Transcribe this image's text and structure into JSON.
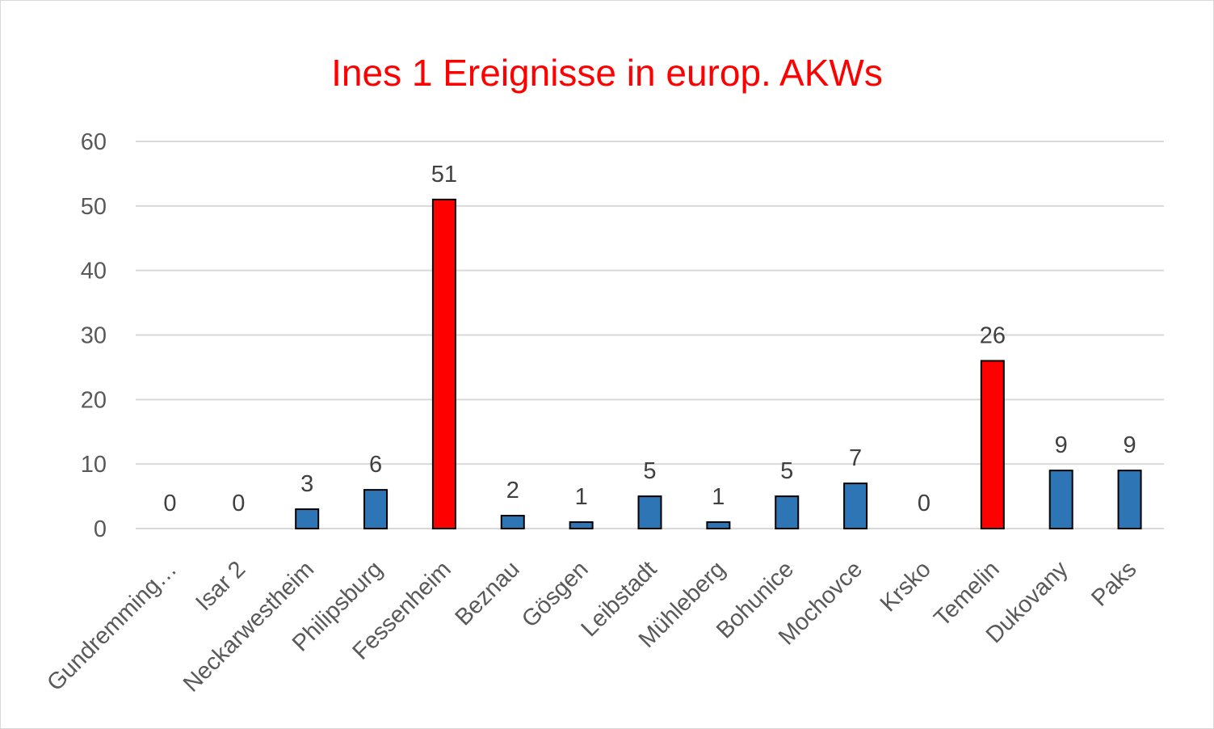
{
  "chart_data": {
    "type": "bar",
    "title": "Ines 1 Ereignisse in europ. AKWs",
    "xlabel": "",
    "ylabel": "",
    "ylim": [
      0,
      60
    ],
    "yticks": [
      0,
      10,
      20,
      30,
      40,
      50,
      60
    ],
    "grid": true,
    "legend": "none",
    "categories": [
      "Gundremming…",
      "Isar 2",
      "Neckarwestheim",
      "Philipsburg",
      "Fessenheim",
      "Beznau",
      "Gösgen",
      "Leibstadt",
      "Mühleberg",
      "Bohunice",
      "Mochovce",
      "Krsko",
      "Temelin",
      "Dukovany",
      "Paks"
    ],
    "values": [
      0,
      0,
      3,
      6,
      51,
      2,
      1,
      5,
      1,
      5,
      7,
      0,
      26,
      9,
      9
    ],
    "colors": {
      "title": "#ff0000",
      "default_bar": "#2e75b6",
      "highlight_bar": "#ff0000",
      "bar_outline": "#000000",
      "gridline": "#d9d9d9"
    },
    "highlighted_categories": [
      "Fessenheim",
      "Temelin"
    ]
  }
}
